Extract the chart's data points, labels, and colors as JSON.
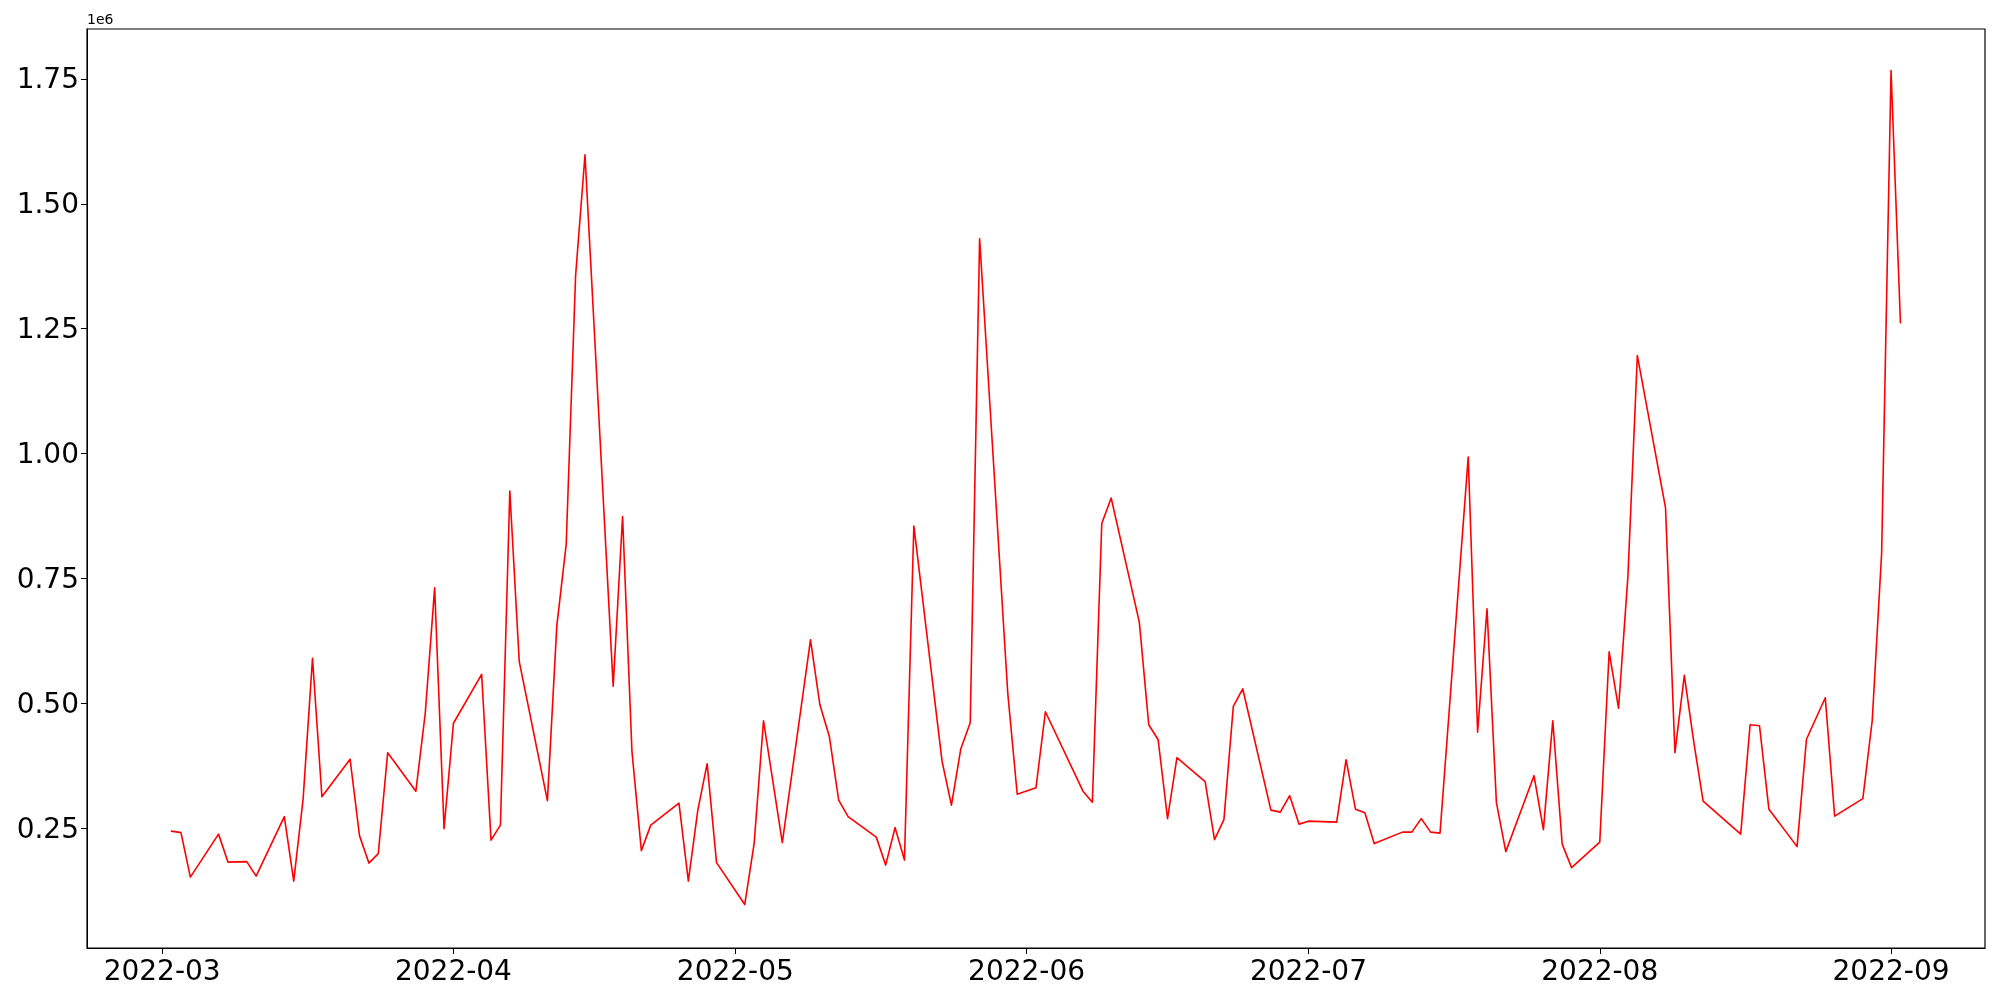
{
  "chart_data": {
    "type": "line",
    "annotations": [
      "1e6"
    ],
    "x": [
      "2022-03-02",
      "2022-03-03",
      "2022-03-04",
      "2022-03-07",
      "2022-03-08",
      "2022-03-10",
      "2022-03-11",
      "2022-03-14",
      "2022-03-15",
      "2022-03-16",
      "2022-03-17",
      "2022-03-18",
      "2022-03-21",
      "2022-03-22",
      "2022-03-23",
      "2022-03-24",
      "2022-03-25",
      "2022-03-28",
      "2022-03-29",
      "2022-03-30",
      "2022-03-31",
      "2022-04-01",
      "2022-04-04",
      "2022-04-05",
      "2022-04-06",
      "2022-04-07",
      "2022-04-08",
      "2022-04-11",
      "2022-04-12",
      "2022-04-13",
      "2022-04-14",
      "2022-04-15",
      "2022-04-18",
      "2022-04-19",
      "2022-04-20",
      "2022-04-21",
      "2022-04-22",
      "2022-04-25",
      "2022-04-26",
      "2022-04-27",
      "2022-04-28",
      "2022-04-29",
      "2022-05-02",
      "2022-05-03",
      "2022-05-04",
      "2022-05-06",
      "2022-05-09",
      "2022-05-10",
      "2022-05-11",
      "2022-05-12",
      "2022-05-13",
      "2022-05-16",
      "2022-05-17",
      "2022-05-18",
      "2022-05-19",
      "2022-05-20",
      "2022-05-23",
      "2022-05-24",
      "2022-05-25",
      "2022-05-26",
      "2022-05-27",
      "2022-05-30",
      "2022-05-31",
      "2022-06-02",
      "2022-06-03",
      "2022-06-07",
      "2022-06-08",
      "2022-06-09",
      "2022-06-10",
      "2022-06-13",
      "2022-06-14",
      "2022-06-15",
      "2022-06-16",
      "2022-06-17",
      "2022-06-20",
      "2022-06-21",
      "2022-06-22",
      "2022-06-23",
      "2022-06-24",
      "2022-06-27",
      "2022-06-28",
      "2022-06-29",
      "2022-06-30",
      "2022-07-01",
      "2022-07-04",
      "2022-07-05",
      "2022-07-06",
      "2022-07-07",
      "2022-07-08",
      "2022-07-11",
      "2022-07-12",
      "2022-07-13",
      "2022-07-14",
      "2022-07-15",
      "2022-07-18",
      "2022-07-19",
      "2022-07-20",
      "2022-07-21",
      "2022-07-22",
      "2022-07-25",
      "2022-07-26",
      "2022-07-27",
      "2022-07-28",
      "2022-07-29",
      "2022-08-01",
      "2022-08-02",
      "2022-08-03",
      "2022-08-04",
      "2022-08-05",
      "2022-08-08",
      "2022-08-09",
      "2022-08-10",
      "2022-08-11",
      "2022-08-12",
      "2022-08-16",
      "2022-08-17",
      "2022-08-18",
      "2022-08-19",
      "2022-08-22",
      "2022-08-23",
      "2022-08-25",
      "2022-08-26",
      "2022-08-29",
      "2022-08-30",
      "2022-08-31",
      "2022-09-01",
      "2022-09-02"
    ],
    "series": [
      {
        "color": "#ff0000",
        "values": [
          0.244,
          0.241,
          0.152,
          0.238,
          0.182,
          0.183,
          0.154,
          0.273,
          0.144,
          0.308,
          0.59,
          0.313,
          0.388,
          0.235,
          0.18,
          0.199,
          0.401,
          0.324,
          0.48,
          0.731,
          0.249,
          0.46,
          0.558,
          0.226,
          0.256,
          0.925,
          0.584,
          0.305,
          0.655,
          0.818,
          1.356,
          1.598,
          0.534,
          0.874,
          0.403,
          0.205,
          0.256,
          0.3,
          0.144,
          0.285,
          0.379,
          0.181,
          0.097,
          0.219,
          0.465,
          0.221,
          0.627,
          0.497,
          0.434,
          0.306,
          0.273,
          0.232,
          0.176,
          0.251,
          0.186,
          0.855,
          0.384,
          0.296,
          0.409,
          0.461,
          1.43,
          0.519,
          0.318,
          0.331,
          0.483,
          0.324,
          0.302,
          0.86,
          0.911,
          0.662,
          0.457,
          0.427,
          0.269,
          0.391,
          0.343,
          0.227,
          0.267,
          0.494,
          0.529,
          0.286,
          0.282,
          0.315,
          0.258,
          0.264,
          0.262,
          0.387,
          0.288,
          0.281,
          0.219,
          0.242,
          0.242,
          0.269,
          0.242,
          0.24,
          0.993,
          0.442,
          0.689,
          0.301,
          0.203,
          0.355,
          0.247,
          0.465,
          0.218,
          0.171,
          0.222,
          0.603,
          0.49,
          0.755,
          1.196,
          0.891,
          0.401,
          0.556,
          0.423,
          0.304,
          0.238,
          0.457,
          0.455,
          0.288,
          0.213,
          0.428,
          0.511,
          0.274,
          0.309,
          0.466,
          0.801,
          1.767,
          1.262
        ]
      }
    ],
    "xlim": [
      "2022-02-21",
      "2022-09-11"
    ],
    "xticks": [
      {
        "value": "2022-03-01",
        "label": "2022-03"
      },
      {
        "value": "2022-04-01",
        "label": "2022-04"
      },
      {
        "value": "2022-05-01",
        "label": "2022-05"
      },
      {
        "value": "2022-06-01",
        "label": "2022-06"
      },
      {
        "value": "2022-07-01",
        "label": "2022-07"
      },
      {
        "value": "2022-08-01",
        "label": "2022-08"
      },
      {
        "value": "2022-09-01",
        "label": "2022-09"
      }
    ],
    "ylim": [
      0.01,
      1.85
    ],
    "yticks": [
      {
        "value": 0.25,
        "label": "0.25"
      },
      {
        "value": 0.5,
        "label": "0.50"
      },
      {
        "value": 0.75,
        "label": "0.75"
      },
      {
        "value": 1,
        "label": "1.00"
      },
      {
        "value": 1.25,
        "label": "1.25"
      },
      {
        "value": 1.5,
        "label": "1.50"
      },
      {
        "value": 1.75,
        "label": "1.75"
      }
    ],
    "grid": false,
    "marker": "none",
    "line_style": "solid"
  }
}
